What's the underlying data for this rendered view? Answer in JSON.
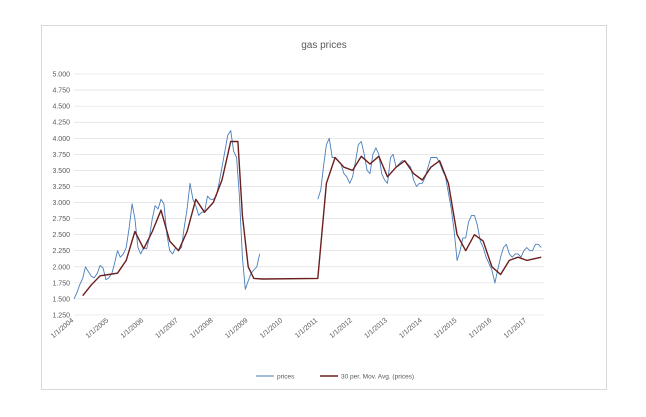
{
  "chart_data": {
    "type": "line",
    "title": "gas prices",
    "xlabel": "",
    "ylabel": "",
    "ylim": [
      1.25,
      5.0
    ],
    "y_ticks": [
      "1.250",
      "1.500",
      "1.750",
      "2.000",
      "2.250",
      "2.500",
      "2.750",
      "3.000",
      "3.250",
      "3.500",
      "3.750",
      "4.000",
      "4.250",
      "4.500",
      "4.750",
      "5.000"
    ],
    "x_ticks": [
      "1/1/2004",
      "1/1/2005",
      "1/1/2006",
      "1/1/2007",
      "1/1/2008",
      "1/1/2009",
      "1/1/2010",
      "1/1/2011",
      "1/1/2012",
      "1/1/2013",
      "1/1/2014",
      "1/1/2015",
      "1/1/2016",
      "1/1/2017"
    ],
    "xlim": [
      "2004-01-01",
      "2017-06-30"
    ],
    "grid": true,
    "legend_position": "bottom",
    "series": [
      {
        "name": "prices",
        "color": "#4a7ebb",
        "points": [
          [
            "2004-01-01",
            1.5
          ],
          [
            "2004-02-01",
            1.6
          ],
          [
            "2004-03-01",
            1.72
          ],
          [
            "2004-04-01",
            1.82
          ],
          [
            "2004-05-01",
            2.0
          ],
          [
            "2004-06-01",
            1.92
          ],
          [
            "2004-07-01",
            1.85
          ],
          [
            "2004-08-01",
            1.83
          ],
          [
            "2004-09-01",
            1.9
          ],
          [
            "2004-10-01",
            2.02
          ],
          [
            "2004-11-01",
            1.98
          ],
          [
            "2004-12-01",
            1.8
          ],
          [
            "2005-01-01",
            1.83
          ],
          [
            "2005-02-01",
            1.9
          ],
          [
            "2005-03-01",
            2.05
          ],
          [
            "2005-04-01",
            2.25
          ],
          [
            "2005-05-01",
            2.15
          ],
          [
            "2005-06-01",
            2.2
          ],
          [
            "2005-07-01",
            2.3
          ],
          [
            "2005-08-01",
            2.6
          ],
          [
            "2005-09-01",
            2.98
          ],
          [
            "2005-10-01",
            2.75
          ],
          [
            "2005-11-01",
            2.3
          ],
          [
            "2005-12-01",
            2.2
          ],
          [
            "2006-01-01",
            2.3
          ],
          [
            "2006-02-01",
            2.28
          ],
          [
            "2006-03-01",
            2.45
          ],
          [
            "2006-04-01",
            2.75
          ],
          [
            "2006-05-01",
            2.95
          ],
          [
            "2006-06-01",
            2.9
          ],
          [
            "2006-07-01",
            3.05
          ],
          [
            "2006-08-01",
            2.98
          ],
          [
            "2006-09-01",
            2.5
          ],
          [
            "2006-10-01",
            2.25
          ],
          [
            "2006-11-01",
            2.2
          ],
          [
            "2006-12-01",
            2.3
          ],
          [
            "2007-01-01",
            2.25
          ],
          [
            "2007-02-01",
            2.3
          ],
          [
            "2007-03-01",
            2.6
          ],
          [
            "2007-04-01",
            2.9
          ],
          [
            "2007-05-01",
            3.3
          ],
          [
            "2007-06-01",
            3.05
          ],
          [
            "2007-07-01",
            2.95
          ],
          [
            "2007-08-01",
            2.8
          ],
          [
            "2007-09-01",
            2.85
          ],
          [
            "2007-10-01",
            2.85
          ],
          [
            "2007-11-01",
            3.1
          ],
          [
            "2007-12-01",
            3.05
          ],
          [
            "2008-01-01",
            3.05
          ],
          [
            "2008-02-01",
            3.1
          ],
          [
            "2008-03-01",
            3.3
          ],
          [
            "2008-04-01",
            3.55
          ],
          [
            "2008-05-01",
            3.8
          ],
          [
            "2008-06-01",
            4.05
          ],
          [
            "2008-07-01",
            4.12
          ],
          [
            "2008-08-01",
            3.8
          ],
          [
            "2008-09-01",
            3.7
          ],
          [
            "2008-10-01",
            3.1
          ],
          [
            "2008-11-01",
            2.15
          ],
          [
            "2008-12-01",
            1.65
          ],
          [
            "2009-01-01",
            1.78
          ],
          [
            "2009-02-01",
            1.9
          ],
          [
            "2009-03-01",
            1.95
          ],
          [
            "2009-04-01",
            2.0
          ],
          [
            "2009-05-01",
            2.2
          ],
          [
            "2011-01-01",
            3.05
          ],
          [
            "2011-02-01",
            3.2
          ],
          [
            "2011-03-01",
            3.55
          ],
          [
            "2011-04-01",
            3.9
          ],
          [
            "2011-05-01",
            4.0
          ],
          [
            "2011-06-01",
            3.7
          ],
          [
            "2011-07-01",
            3.7
          ],
          [
            "2011-08-01",
            3.65
          ],
          [
            "2011-09-01",
            3.6
          ],
          [
            "2011-10-01",
            3.45
          ],
          [
            "2011-11-01",
            3.4
          ],
          [
            "2011-12-01",
            3.3
          ],
          [
            "2012-01-01",
            3.4
          ],
          [
            "2012-02-01",
            3.65
          ],
          [
            "2012-03-01",
            3.9
          ],
          [
            "2012-04-01",
            3.95
          ],
          [
            "2012-05-01",
            3.75
          ],
          [
            "2012-06-01",
            3.5
          ],
          [
            "2012-07-01",
            3.45
          ],
          [
            "2012-08-01",
            3.75
          ],
          [
            "2012-09-01",
            3.85
          ],
          [
            "2012-10-01",
            3.75
          ],
          [
            "2012-11-01",
            3.45
          ],
          [
            "2012-12-01",
            3.35
          ],
          [
            "2013-01-01",
            3.3
          ],
          [
            "2013-02-01",
            3.7
          ],
          [
            "2013-03-01",
            3.75
          ],
          [
            "2013-04-01",
            3.55
          ],
          [
            "2013-05-01",
            3.6
          ],
          [
            "2013-06-01",
            3.65
          ],
          [
            "2013-07-01",
            3.65
          ],
          [
            "2013-08-01",
            3.6
          ],
          [
            "2013-09-01",
            3.55
          ],
          [
            "2013-10-01",
            3.35
          ],
          [
            "2013-11-01",
            3.25
          ],
          [
            "2013-12-01",
            3.3
          ],
          [
            "2014-01-01",
            3.3
          ],
          [
            "2014-02-01",
            3.4
          ],
          [
            "2014-03-01",
            3.55
          ],
          [
            "2014-04-01",
            3.7
          ],
          [
            "2014-05-01",
            3.7
          ],
          [
            "2014-06-01",
            3.7
          ],
          [
            "2014-07-01",
            3.62
          ],
          [
            "2014-08-01",
            3.5
          ],
          [
            "2014-09-01",
            3.4
          ],
          [
            "2014-10-01",
            3.15
          ],
          [
            "2014-11-01",
            2.9
          ],
          [
            "2014-12-01",
            2.55
          ],
          [
            "2015-01-01",
            2.1
          ],
          [
            "2015-02-01",
            2.25
          ],
          [
            "2015-03-01",
            2.45
          ],
          [
            "2015-04-01",
            2.45
          ],
          [
            "2015-05-01",
            2.7
          ],
          [
            "2015-06-01",
            2.8
          ],
          [
            "2015-07-01",
            2.8
          ],
          [
            "2015-08-01",
            2.65
          ],
          [
            "2015-09-01",
            2.4
          ],
          [
            "2015-10-01",
            2.3
          ],
          [
            "2015-11-01",
            2.15
          ],
          [
            "2015-12-01",
            2.05
          ],
          [
            "2016-01-01",
            1.95
          ],
          [
            "2016-02-01",
            1.75
          ],
          [
            "2016-03-01",
            1.95
          ],
          [
            "2016-04-01",
            2.15
          ],
          [
            "2016-05-01",
            2.3
          ],
          [
            "2016-06-01",
            2.35
          ],
          [
            "2016-07-01",
            2.2
          ],
          [
            "2016-08-01",
            2.15
          ],
          [
            "2016-09-01",
            2.2
          ],
          [
            "2016-10-01",
            2.2
          ],
          [
            "2016-11-01",
            2.15
          ],
          [
            "2016-12-01",
            2.25
          ],
          [
            "2017-01-01",
            2.3
          ],
          [
            "2017-02-01",
            2.25
          ],
          [
            "2017-03-01",
            2.25
          ],
          [
            "2017-04-01",
            2.35
          ],
          [
            "2017-05-01",
            2.35
          ],
          [
            "2017-06-01",
            2.3
          ]
        ]
      },
      {
        "name": "30 per. Mov. Avg. (prices)",
        "color": "#6b1e1e",
        "points": [
          [
            "2004-04-01",
            1.55
          ],
          [
            "2004-07-01",
            1.72
          ],
          [
            "2004-10-01",
            1.86
          ],
          [
            "2005-01-01",
            1.88
          ],
          [
            "2005-04-01",
            1.9
          ],
          [
            "2005-07-01",
            2.1
          ],
          [
            "2005-10-01",
            2.55
          ],
          [
            "2006-01-01",
            2.28
          ],
          [
            "2006-04-01",
            2.55
          ],
          [
            "2006-07-01",
            2.88
          ],
          [
            "2006-10-01",
            2.4
          ],
          [
            "2007-01-01",
            2.25
          ],
          [
            "2007-04-01",
            2.55
          ],
          [
            "2007-07-01",
            3.05
          ],
          [
            "2007-10-01",
            2.85
          ],
          [
            "2008-01-01",
            3.0
          ],
          [
            "2008-04-01",
            3.35
          ],
          [
            "2008-07-01",
            3.95
          ],
          [
            "2008-09-15",
            3.95
          ],
          [
            "2008-11-01",
            2.8
          ],
          [
            "2009-01-01",
            2.0
          ],
          [
            "2009-03-01",
            1.82
          ],
          [
            "2009-06-01",
            1.81
          ],
          [
            "2011-01-01",
            1.82
          ],
          [
            "2011-04-01",
            3.3
          ],
          [
            "2011-07-01",
            3.7
          ],
          [
            "2011-10-01",
            3.55
          ],
          [
            "2012-01-01",
            3.5
          ],
          [
            "2012-04-01",
            3.72
          ],
          [
            "2012-07-01",
            3.6
          ],
          [
            "2012-10-01",
            3.72
          ],
          [
            "2013-01-01",
            3.4
          ],
          [
            "2013-04-01",
            3.55
          ],
          [
            "2013-07-01",
            3.65
          ],
          [
            "2013-10-01",
            3.45
          ],
          [
            "2014-01-01",
            3.35
          ],
          [
            "2014-04-01",
            3.55
          ],
          [
            "2014-07-01",
            3.65
          ],
          [
            "2014-10-01",
            3.3
          ],
          [
            "2015-01-01",
            2.5
          ],
          [
            "2015-04-01",
            2.25
          ],
          [
            "2015-07-01",
            2.5
          ],
          [
            "2015-10-01",
            2.4
          ],
          [
            "2016-01-01",
            2.0
          ],
          [
            "2016-04-01",
            1.88
          ],
          [
            "2016-07-01",
            2.1
          ],
          [
            "2016-10-01",
            2.15
          ],
          [
            "2017-01-01",
            2.1
          ],
          [
            "2017-06-01",
            2.15
          ]
        ]
      }
    ]
  }
}
